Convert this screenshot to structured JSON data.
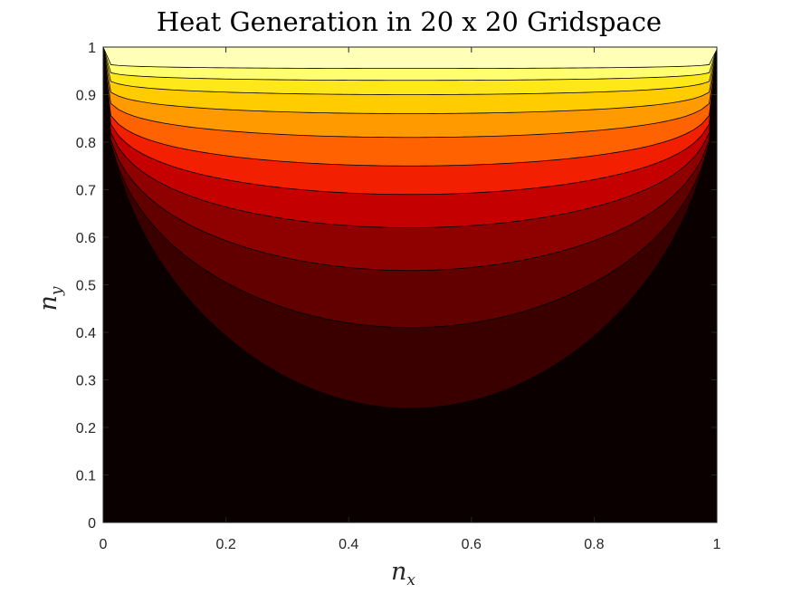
{
  "chart_data": {
    "type": "contour",
    "title": "Heat Generation in 20 x 20 Gridspace",
    "xlabel": {
      "base": "n",
      "sub": "x"
    },
    "ylabel": {
      "base": "n",
      "sub": "y"
    },
    "xlim": [
      0,
      1
    ],
    "ylim": [
      0,
      1
    ],
    "xticks": [
      "0",
      "0.2",
      "0.4",
      "0.6",
      "0.8",
      "1"
    ],
    "yticks": [
      "0",
      "0.1",
      "0.2",
      "0.3",
      "0.4",
      "0.5",
      "0.6",
      "0.7",
      "0.8",
      "0.9",
      "1"
    ],
    "colormap": "hot",
    "grid": false,
    "levels": [
      {
        "level": 1,
        "fill": "#0a0000",
        "y_center": null,
        "edge_exp": null
      },
      {
        "level": 2,
        "fill": "#3a0000",
        "y_center": 0.24,
        "edge_exp": 0.42
      },
      {
        "level": 3,
        "fill": "#620000",
        "y_center": 0.41,
        "edge_exp": 0.33
      },
      {
        "level": 4,
        "fill": "#8f0000",
        "y_center": 0.53,
        "edge_exp": 0.27
      },
      {
        "level": 5,
        "fill": "#c40000",
        "y_center": 0.62,
        "edge_exp": 0.23
      },
      {
        "level": 6,
        "fill": "#f22000",
        "y_center": 0.69,
        "edge_exp": 0.2
      },
      {
        "level": 7,
        "fill": "#ff6200",
        "y_center": 0.75,
        "edge_exp": 0.17
      },
      {
        "level": 8,
        "fill": "#ff9a00",
        "y_center": 0.81,
        "edge_exp": 0.145
      },
      {
        "level": 9,
        "fill": "#ffcc00",
        "y_center": 0.86,
        "edge_exp": 0.12
      },
      {
        "level": 10,
        "fill": "#ffe81a",
        "y_center": 0.9,
        "edge_exp": 0.1
      },
      {
        "level": 11,
        "fill": "#ffff70",
        "y_center": 0.93,
        "edge_exp": 0.08
      },
      {
        "level": 12,
        "fill": "#ffffb8",
        "y_center": 0.955,
        "edge_exp": 0.06
      }
    ]
  }
}
